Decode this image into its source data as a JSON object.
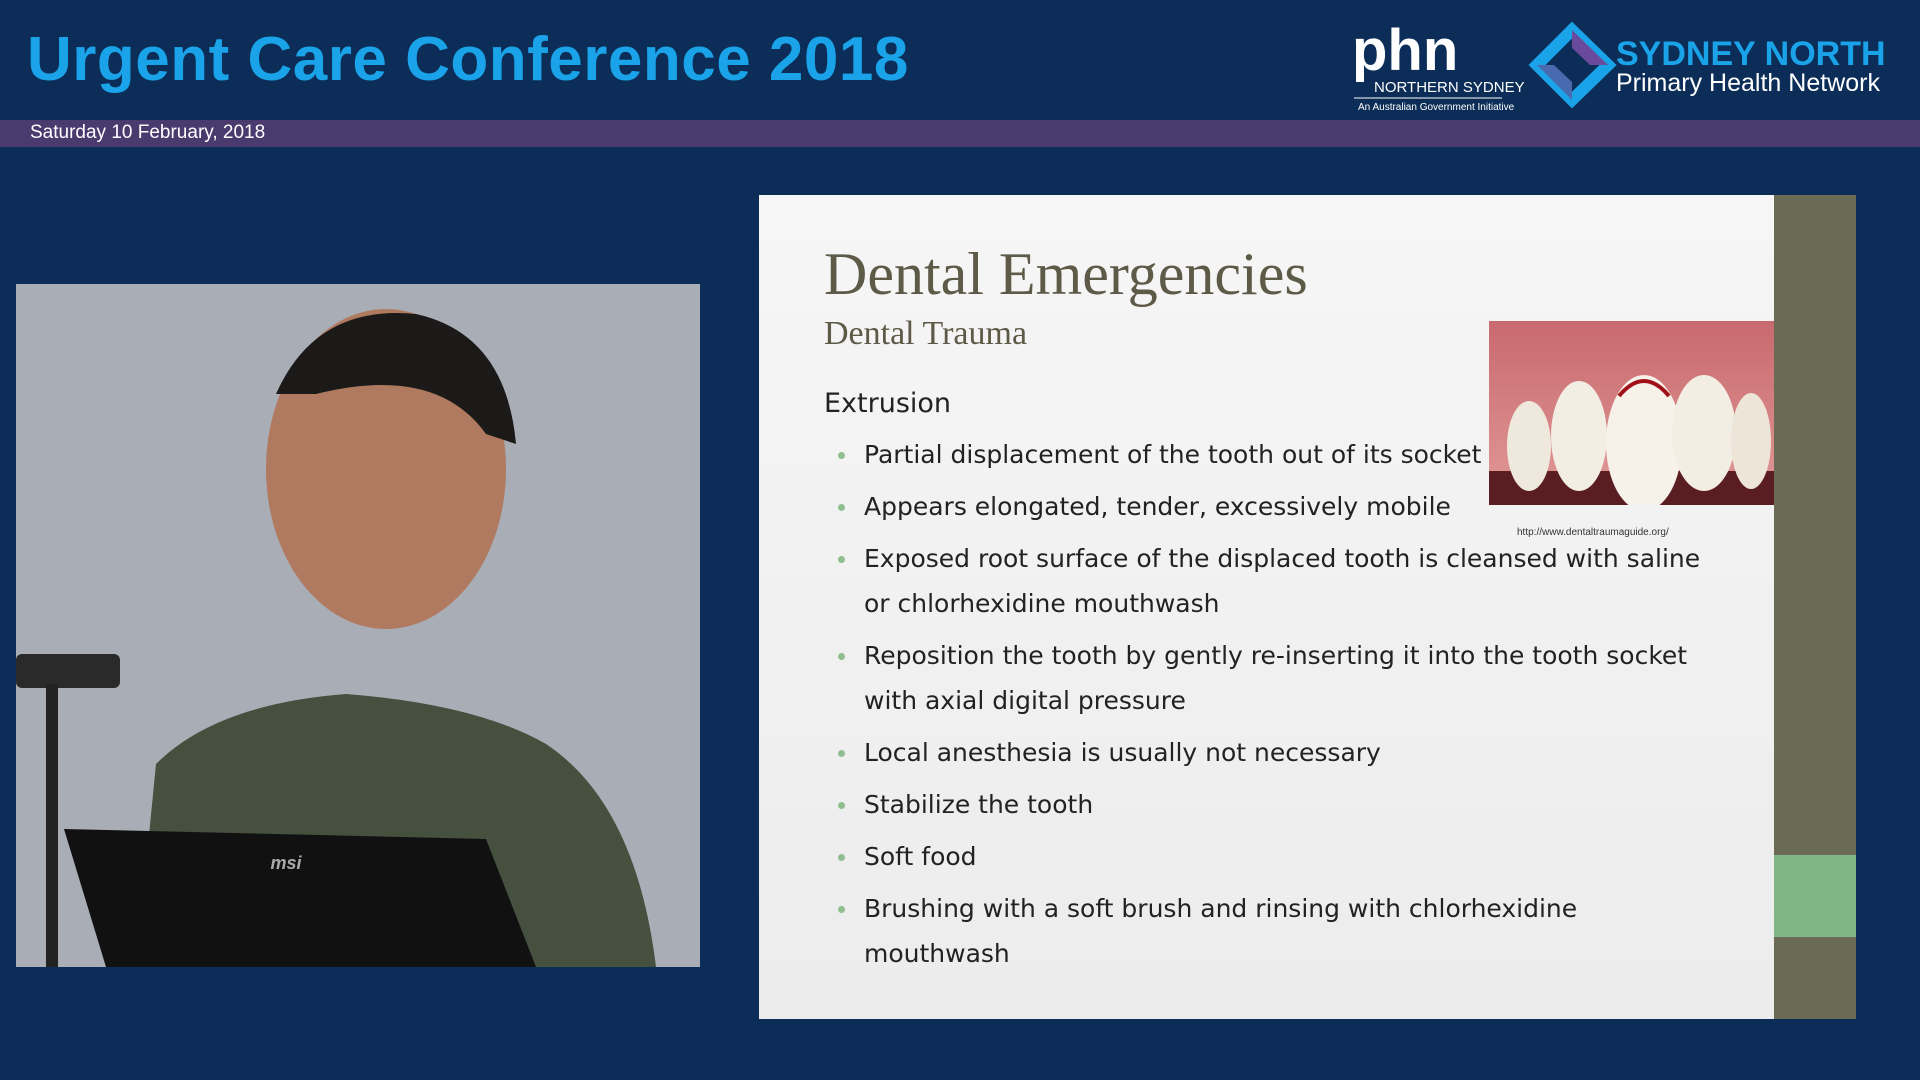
{
  "header": {
    "title": "Urgent Care Conference 2018",
    "date": "Saturday 10 February, 2018"
  },
  "logos": {
    "phn": "phn",
    "phn_region": "NORTHERN SYDNEY",
    "phn_note": "An Australian Government Initiative",
    "network_name": "SYDNEY NORTH",
    "network_subtitle": "Primary Health Network"
  },
  "video": {
    "laptop_brand": "msi"
  },
  "slide": {
    "title": "Dental Emergencies",
    "subtitle": "Dental Trauma",
    "heading": "Extrusion",
    "bullets": [
      "Partial displacement of the tooth out of its socket",
      "Appears elongated, tender, excessively mobile",
      "Exposed root surface of the displaced tooth is cleansed with saline or chlorhexidine mouthwash",
      "Reposition the tooth by gently re-inserting it into the tooth socket with axial digital pressure",
      "Local anesthesia is usually not necessary",
      "Stabilize the tooth",
      "Soft food",
      "Brushing with a soft brush and rinsing with chlorhexidine mouthwash"
    ],
    "image_credit": "http://www.dentaltraumaguide.org/"
  }
}
